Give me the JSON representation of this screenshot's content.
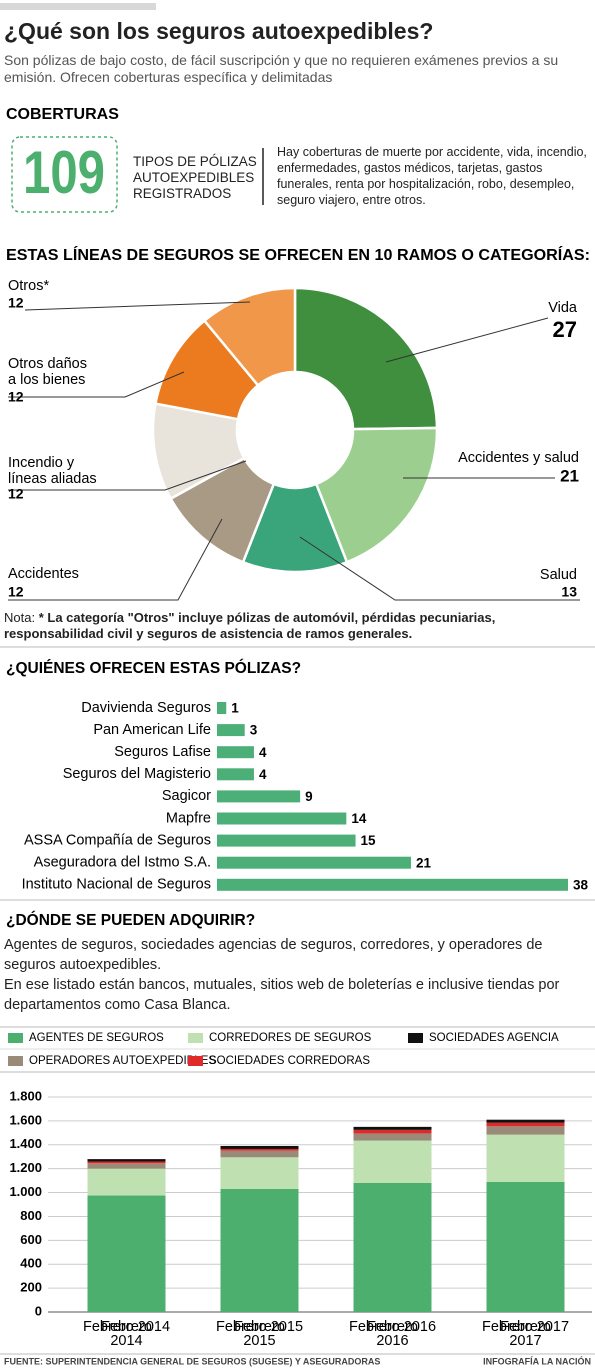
{
  "top": {
    "title": "¿Qué son los seguros autoexpedibles?",
    "subtitle": "Son pólizas de bajo costo, de fácil suscripción y que no requieren exámenes previos a su emisión. Ofrecen coberturas específica y delimitadas"
  },
  "coverage": {
    "heading": "COBERTURAS",
    "count": 109,
    "count_label": "TIPOS DE PÓLIZAS AUTOEXPEDIBLES REGISTRADOS",
    "description": "Hay coberturas de muerte por accidente, vida, incendio, enfermedades, gastos médicos, tarjetas, gastos funerales, renta por hospitalización, robo, desempleo, seguro viajero, entre otros."
  },
  "chart_data": [
    {
      "type": "pie",
      "title": "ESTAS LÍNEAS DE SEGUROS SE OFRECEN EN 10 RAMOS O CATEGORÍAS:",
      "categories": [
        "Vida",
        "Accidentes y salud",
        "Salud",
        "Accidentes",
        "Incendio y líneas aliadas",
        "Otros daños a los bienes",
        "Otros*"
      ],
      "values": [
        27,
        21,
        13,
        12,
        12,
        12,
        12
      ],
      "colors": [
        "#3f8f3f",
        "#9ccf8f",
        "#3aa57a",
        "#a89a85",
        "#e8e4dc",
        "#ec7a1f",
        "#f0974a"
      ]
    },
    {
      "type": "barh",
      "title": "¿QUIÉNES OFRECEN ESTAS PÓLIZAS?",
      "categories": [
        "Davivienda Seguros",
        "Pan American Life",
        "Seguros Lafise",
        "Seguros del Magisterio",
        "Sagicor",
        "Mapfre",
        "ASSA Compañía de Seguros",
        "Aseguradora del Istmo S.A.",
        "Instituto Nacional de Seguros"
      ],
      "values": [
        1,
        3,
        4,
        4,
        9,
        14,
        15,
        21,
        38
      ],
      "color": "#4caf78"
    },
    {
      "type": "stacked_bar",
      "categories": [
        "Febrero 2014",
        "Febrero 2015",
        "Febrero 2016",
        "Febrero 2017"
      ],
      "series": [
        {
          "name": "AGENTES DE SEGUROS",
          "color": "#4caf6e",
          "values": [
            975,
            1030,
            1080,
            1090
          ]
        },
        {
          "name": "CORREDORES DE SEGUROS",
          "color": "#bfe0b0",
          "values": [
            225,
            265,
            355,
            395
          ]
        },
        {
          "name": "OPERADORES AUTOEXPEDIBLES",
          "color": "#9a8a78",
          "values": [
            45,
            55,
            60,
            70
          ]
        },
        {
          "name": "SOCIEDADES CORREDORAS",
          "color": "#e02a2a",
          "values": [
            15,
            15,
            30,
            30
          ]
        },
        {
          "name": "SOCIEDADES AGENCIA",
          "color": "#111111",
          "values": [
            20,
            25,
            25,
            25
          ]
        }
      ],
      "ylim": [
        0,
        1800
      ],
      "yticks": [
        0,
        200,
        400,
        600,
        800,
        {
          "value": 1000,
          "label": "1.000"
        },
        {
          "value": 1200,
          "label": "1.200"
        },
        {
          "value": 1400,
          "label": "1.400"
        },
        {
          "value": 1600,
          "label": "1.600"
        },
        {
          "value": 1800,
          "label": "1.800"
        }
      ],
      "grid": true
    }
  ],
  "note": {
    "label": "Nota:",
    "text": "* La categoría \"Otros\" incluye pólizas de automóvil, pérdidas pecuniarias, responsabilidad civil y seguros de asistencia de ramos generales."
  },
  "where": {
    "heading": "¿DÓNDE SE PUEDEN ADQUIRIR?",
    "paragraphs": [
      "Agentes de seguros, sociedades agencias de seguros, corredores, y operadores de seguros autoexpedibles.",
      "En ese listado están bancos, mutuales, sitios web de boleterías e inclusive tiendas por departamentos como Casa Blanca."
    ]
  },
  "footer": {
    "source": "FUENTE: SUPERINTENDENCIA GENERAL DE SEGUROS (SUGESE) Y ASEGURADORAS",
    "credit": "INFOGRAFÍA LA NACIÓN"
  }
}
